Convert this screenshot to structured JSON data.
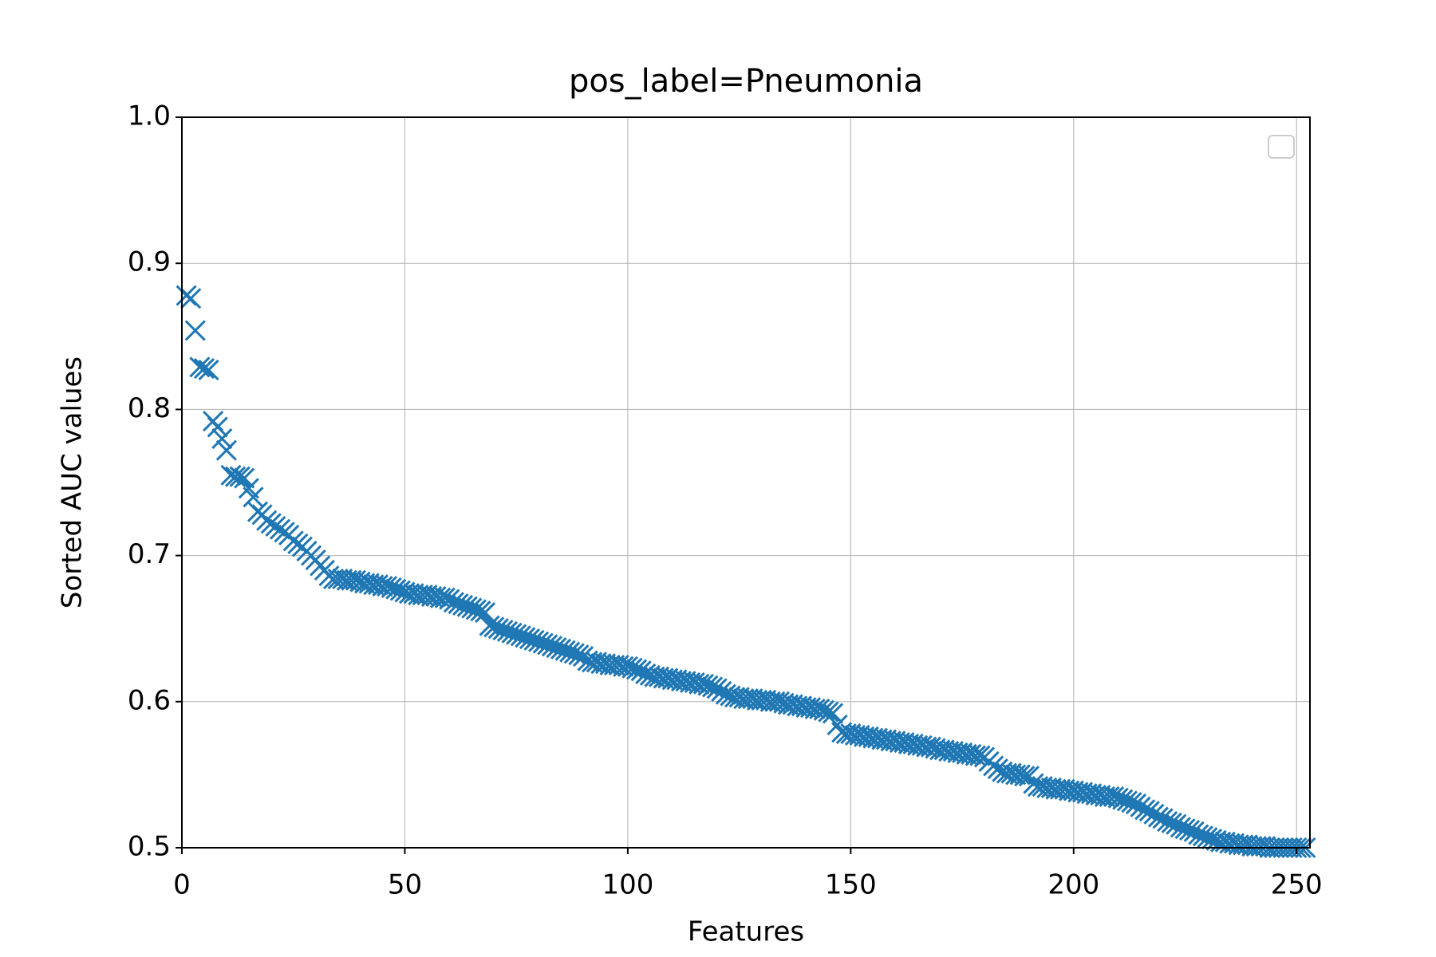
{
  "chart_data": {
    "type": "scatter",
    "title": "pos_label=Pneumonia",
    "x_label": "Features",
    "y_label": "Sorted AUC values",
    "marker": "x",
    "color": "#1f77b4",
    "grid": true,
    "xlim": [
      0,
      253
    ],
    "xticks": [
      0,
      50,
      100,
      150,
      200,
      250
    ],
    "ylim": [
      0.5,
      1.0
    ],
    "yticks": [
      {
        "value": 0.5,
        "label": "0.5"
      },
      {
        "value": 0.6,
        "label": "0.6"
      },
      {
        "value": 0.7,
        "label": "0.7"
      },
      {
        "value": 0.8,
        "label": "0.8"
      },
      {
        "value": 0.9,
        "label": "0.9"
      },
      {
        "value": 1.0,
        "label": "1.0"
      }
    ],
    "x": [
      1,
      2,
      3,
      4,
      5,
      6,
      7,
      8,
      9,
      10,
      11,
      12,
      13,
      14,
      15,
      16,
      17,
      18,
      19,
      20,
      21,
      22,
      23,
      24,
      25,
      26,
      27,
      28,
      29,
      30,
      31,
      32,
      33,
      34,
      35,
      36,
      37,
      38,
      39,
      40,
      41,
      42,
      43,
      44,
      45,
      46,
      47,
      48,
      49,
      50,
      51,
      52,
      53,
      54,
      55,
      56,
      57,
      58,
      59,
      60,
      61,
      62,
      63,
      64,
      65,
      66,
      67,
      68,
      69,
      70,
      71,
      72,
      73,
      74,
      75,
      76,
      77,
      78,
      79,
      80,
      81,
      82,
      83,
      84,
      85,
      86,
      87,
      88,
      89,
      90,
      91,
      92,
      93,
      94,
      95,
      96,
      97,
      98,
      99,
      100,
      101,
      102,
      103,
      104,
      105,
      106,
      107,
      108,
      109,
      110,
      111,
      112,
      113,
      114,
      115,
      116,
      117,
      118,
      119,
      120,
      121,
      122,
      123,
      124,
      125,
      126,
      127,
      128,
      129,
      130,
      131,
      132,
      133,
      134,
      135,
      136,
      137,
      138,
      139,
      140,
      141,
      142,
      143,
      144,
      145,
      146,
      147,
      148,
      149,
      150,
      151,
      152,
      153,
      154,
      155,
      156,
      157,
      158,
      159,
      160,
      161,
      162,
      163,
      164,
      165,
      166,
      167,
      168,
      169,
      170,
      171,
      172,
      173,
      174,
      175,
      176,
      177,
      178,
      179,
      180,
      181,
      182,
      183,
      184,
      185,
      186,
      187,
      188,
      189,
      190,
      191,
      192,
      193,
      194,
      195,
      196,
      197,
      198,
      199,
      200,
      201,
      202,
      203,
      204,
      205,
      206,
      207,
      208,
      209,
      210,
      211,
      212,
      213,
      214,
      215,
      216,
      217,
      218,
      219,
      220,
      221,
      222,
      223,
      224,
      225,
      226,
      227,
      228,
      229,
      230,
      231,
      232,
      233,
      234,
      235,
      236,
      237,
      238,
      239,
      240,
      241,
      242,
      243,
      244,
      245,
      246,
      247,
      248,
      249,
      250,
      251,
      252
    ],
    "values": [
      0.878,
      0.876,
      0.854,
      0.829,
      0.828,
      0.827,
      0.792,
      0.788,
      0.78,
      0.772,
      0.755,
      0.754,
      0.754,
      0.753,
      0.746,
      0.74,
      0.73,
      0.728,
      0.724,
      0.722,
      0.72,
      0.718,
      0.716,
      0.714,
      0.71,
      0.708,
      0.706,
      0.703,
      0.7,
      0.697,
      0.693,
      0.69,
      0.686,
      0.684,
      0.684,
      0.684,
      0.683,
      0.683,
      0.683,
      0.682,
      0.681,
      0.681,
      0.68,
      0.68,
      0.679,
      0.679,
      0.678,
      0.677,
      0.676,
      0.675,
      0.674,
      0.674,
      0.673,
      0.673,
      0.673,
      0.672,
      0.672,
      0.671,
      0.671,
      0.67,
      0.668,
      0.667,
      0.666,
      0.665,
      0.664,
      0.663,
      0.662,
      0.661,
      0.652,
      0.651,
      0.65,
      0.649,
      0.648,
      0.647,
      0.646,
      0.645,
      0.644,
      0.643,
      0.642,
      0.641,
      0.64,
      0.639,
      0.638,
      0.637,
      0.636,
      0.635,
      0.634,
      0.633,
      0.632,
      0.631,
      0.628,
      0.627,
      0.627,
      0.626,
      0.626,
      0.625,
      0.625,
      0.625,
      0.624,
      0.624,
      0.623,
      0.622,
      0.621,
      0.619,
      0.618,
      0.617,
      0.617,
      0.616,
      0.616,
      0.615,
      0.615,
      0.614,
      0.614,
      0.613,
      0.613,
      0.612,
      0.612,
      0.611,
      0.61,
      0.609,
      0.607,
      0.605,
      0.604,
      0.603,
      0.603,
      0.602,
      0.602,
      0.602,
      0.601,
      0.601,
      0.601,
      0.6,
      0.6,
      0.6,
      0.599,
      0.598,
      0.598,
      0.597,
      0.597,
      0.596,
      0.596,
      0.595,
      0.595,
      0.594,
      0.593,
      0.592,
      0.584,
      0.579,
      0.578,
      0.578,
      0.577,
      0.577,
      0.576,
      0.576,
      0.575,
      0.575,
      0.574,
      0.574,
      0.573,
      0.573,
      0.572,
      0.572,
      0.571,
      0.571,
      0.57,
      0.57,
      0.569,
      0.569,
      0.568,
      0.567,
      0.567,
      0.566,
      0.566,
      0.565,
      0.565,
      0.564,
      0.564,
      0.563,
      0.563,
      0.562,
      0.559,
      0.556,
      0.554,
      0.552,
      0.551,
      0.551,
      0.55,
      0.55,
      0.549,
      0.549,
      0.544,
      0.542,
      0.542,
      0.541,
      0.541,
      0.54,
      0.54,
      0.54,
      0.539,
      0.539,
      0.538,
      0.538,
      0.537,
      0.537,
      0.536,
      0.536,
      0.535,
      0.535,
      0.535,
      0.534,
      0.533,
      0.532,
      0.531,
      0.53,
      0.528,
      0.526,
      0.525,
      0.523,
      0.521,
      0.52,
      0.518,
      0.517,
      0.516,
      0.514,
      0.513,
      0.512,
      0.511,
      0.509,
      0.508,
      0.507,
      0.506,
      0.505,
      0.504,
      0.504,
      0.503,
      0.503,
      0.502,
      0.502,
      0.502,
      0.501,
      0.501,
      0.501,
      0.501,
      0.5,
      0.5,
      0.5,
      0.5,
      0.5,
      0.5,
      0.5,
      0.5,
      0.5
    ]
  }
}
